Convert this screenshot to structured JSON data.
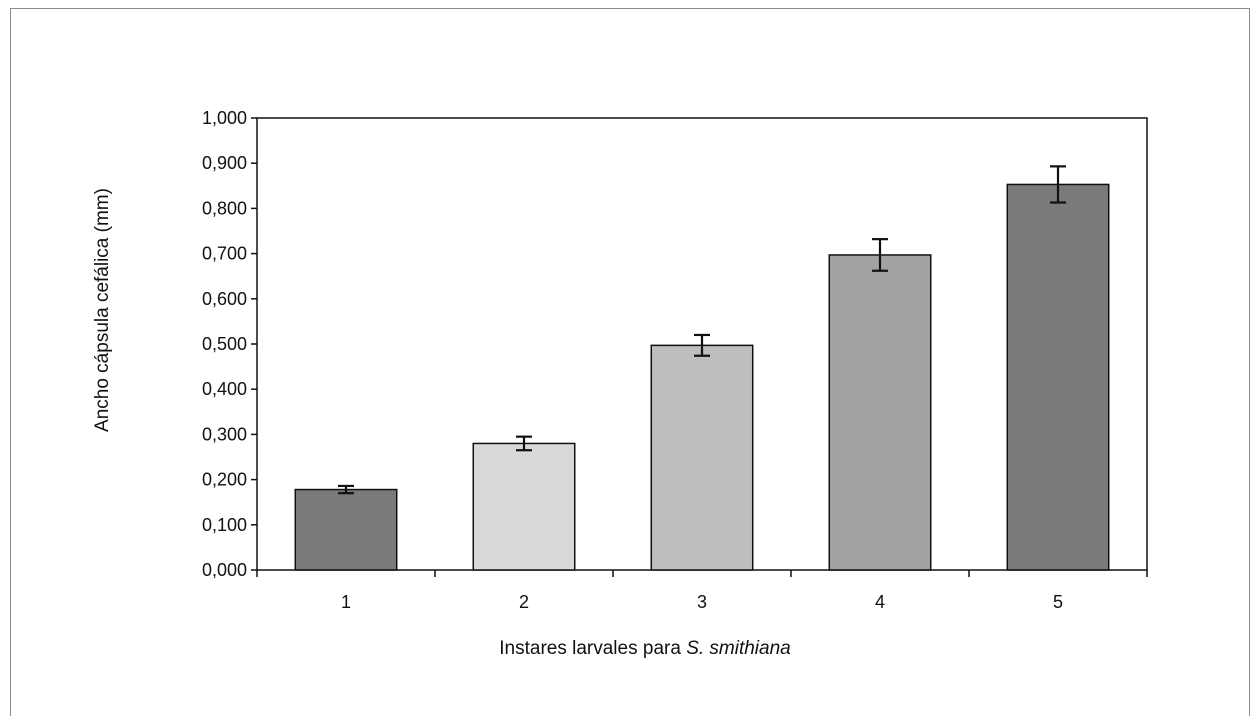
{
  "chart_data": {
    "type": "bar",
    "categories": [
      "1",
      "2",
      "3",
      "4",
      "5"
    ],
    "values": [
      0.178,
      0.28,
      0.497,
      0.697,
      0.853
    ],
    "errors": [
      0.008,
      0.015,
      0.023,
      0.035,
      0.04
    ],
    "bar_colors": [
      "#7a7a7a",
      "#d9d9d9",
      "#bebebe",
      "#a3a3a3",
      "#7a7a7a"
    ],
    "xlabel": {
      "prefix": "Instares larvales para ",
      "italic": "S. smithiana"
    },
    "ylabel": "Ancho cápsula cefálica (mm)",
    "ylim": [
      0,
      1.0
    ],
    "yticks": [
      {
        "value": 0.0,
        "label": "0,000"
      },
      {
        "value": 0.1,
        "label": "0,100"
      },
      {
        "value": 0.2,
        "label": "0,200"
      },
      {
        "value": 0.3,
        "label": "0,300"
      },
      {
        "value": 0.4,
        "label": "0,400"
      },
      {
        "value": 0.5,
        "label": "0,500"
      },
      {
        "value": 0.6,
        "label": "0,600"
      },
      {
        "value": 0.7,
        "label": "0,700"
      },
      {
        "value": 0.8,
        "label": "0,800"
      },
      {
        "value": 0.9,
        "label": "0,900"
      },
      {
        "value": 1.0,
        "label": "1,000"
      }
    ],
    "grid": false,
    "legend": "none"
  }
}
